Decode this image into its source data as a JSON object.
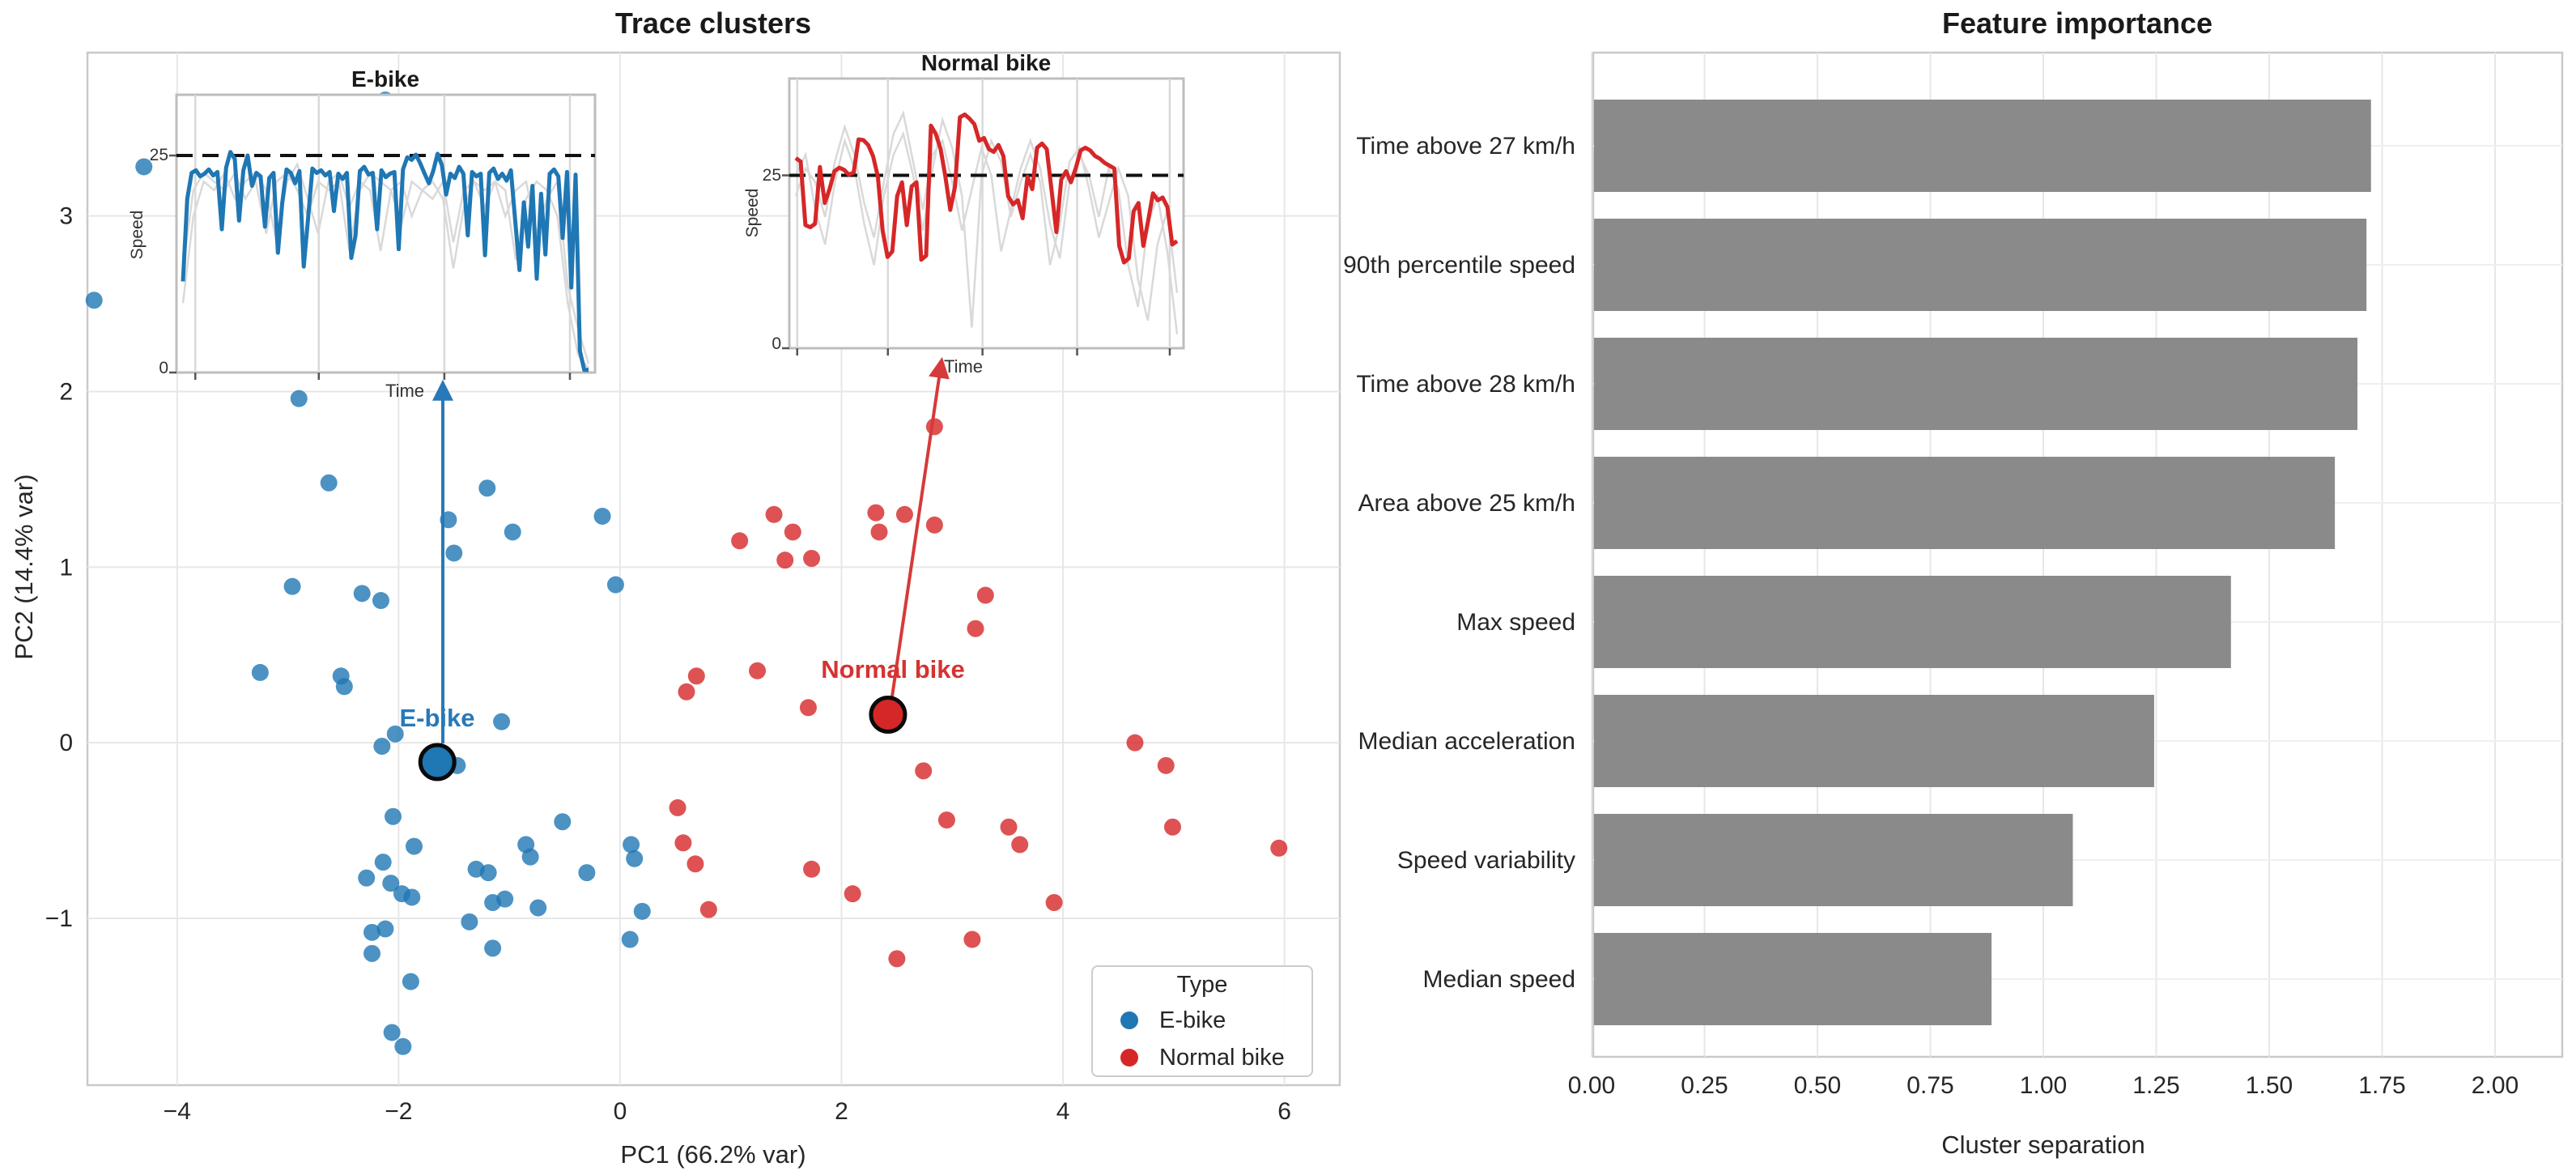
{
  "colors": {
    "ebike_blue": "#1f77b4",
    "normal_red": "#d62728",
    "ebike_label_blue": "#2779b8",
    "normal_label_red": "#d63232",
    "bar_gray": "#8a8a8a",
    "grid_gray": "#e7e7e7",
    "spine_gray": "#c9c9c9",
    "threshold_black": "#111111",
    "bg_trace_gray": "#d9d9d9"
  },
  "chart_data": [
    {
      "type": "scatter",
      "title": "Trace clusters",
      "xlabel": "PC1 (66.2% var)",
      "ylabel": "PC2 (14.4% var)",
      "xlim": [
        -4.81,
        6.5
      ],
      "ylim": [
        -1.95,
        3.93
      ],
      "xticks": [
        -4,
        -2,
        0,
        2,
        4,
        6
      ],
      "xtick_labels": [
        "−4",
        "−2",
        "0",
        "2",
        "4",
        "6"
      ],
      "yticks": [
        3,
        2,
        1,
        0,
        -1
      ],
      "ytick_labels": [
        "3",
        "2",
        "1",
        "0",
        "−1"
      ],
      "grid": true,
      "legend": {
        "title": "Type",
        "position": "lower right",
        "items": [
          {
            "label": "E-bike",
            "color": "#1f77b4"
          },
          {
            "label": "Normal bike",
            "color": "#d62728"
          }
        ]
      },
      "series": [
        {
          "name": "E-bike",
          "color": "#1f77b4",
          "points": [
            [
              -4.3,
              3.28
            ],
            [
              -4.75,
              2.52
            ],
            [
              -2.12,
              3.66
            ],
            [
              -2.9,
              1.96
            ],
            [
              -2.63,
              1.48
            ],
            [
              -1.2,
              1.45
            ],
            [
              -1.55,
              1.27
            ],
            [
              -0.97,
              1.2
            ],
            [
              -0.16,
              1.29
            ],
            [
              -1.5,
              1.08
            ],
            [
              -2.96,
              0.89
            ],
            [
              -2.33,
              0.85
            ],
            [
              -2.16,
              0.81
            ],
            [
              -0.04,
              0.9
            ],
            [
              -3.25,
              0.4
            ],
            [
              -2.52,
              0.38
            ],
            [
              -2.49,
              0.32
            ],
            [
              -1.07,
              0.12
            ],
            [
              -2.03,
              0.05
            ],
            [
              -2.15,
              -0.02
            ],
            [
              -1.47,
              -0.13
            ],
            [
              -2.05,
              -0.42
            ],
            [
              -1.86,
              -0.59
            ],
            [
              -2.14,
              -0.68
            ],
            [
              -2.29,
              -0.77
            ],
            [
              -2.07,
              -0.8
            ],
            [
              -1.97,
              -0.86
            ],
            [
              -1.88,
              -0.88
            ],
            [
              -1.3,
              -0.72
            ],
            [
              -1.19,
              -0.74
            ],
            [
              -1.15,
              -0.91
            ],
            [
              -1.04,
              -0.89
            ],
            [
              -0.85,
              -0.58
            ],
            [
              -0.81,
              -0.65
            ],
            [
              -0.74,
              -0.94
            ],
            [
              -0.52,
              -0.45
            ],
            [
              -0.3,
              -0.74
            ],
            [
              0.1,
              -0.58
            ],
            [
              0.13,
              -0.66
            ],
            [
              0.2,
              -0.96
            ],
            [
              0.09,
              -1.12
            ],
            [
              -1.36,
              -1.02
            ],
            [
              -1.15,
              -1.17
            ],
            [
              -2.24,
              -1.08
            ],
            [
              -2.12,
              -1.06
            ],
            [
              -2.24,
              -1.2
            ],
            [
              -1.89,
              -1.36
            ],
            [
              -2.06,
              -1.65
            ],
            [
              -1.96,
              -1.73
            ]
          ]
        },
        {
          "name": "Normal bike",
          "color": "#d62728",
          "points": [
            [
              2.84,
              1.8
            ],
            [
              2.31,
              1.31
            ],
            [
              2.57,
              1.3
            ],
            [
              2.84,
              1.24
            ],
            [
              2.34,
              1.2
            ],
            [
              1.39,
              1.3
            ],
            [
              1.56,
              1.2
            ],
            [
              1.08,
              1.15
            ],
            [
              1.49,
              1.04
            ],
            [
              1.73,
              1.05
            ],
            [
              3.3,
              0.84
            ],
            [
              3.21,
              0.65
            ],
            [
              1.24,
              0.41
            ],
            [
              1.7,
              0.2
            ],
            [
              0.69,
              0.38
            ],
            [
              0.6,
              0.29
            ],
            [
              4.65,
              0.0
            ],
            [
              2.74,
              -0.16
            ],
            [
              4.93,
              -0.13
            ],
            [
              2.95,
              -0.44
            ],
            [
              3.51,
              -0.48
            ],
            [
              3.61,
              -0.58
            ],
            [
              4.99,
              -0.48
            ],
            [
              5.95,
              -0.6
            ],
            [
              1.73,
              -0.72
            ],
            [
              2.1,
              -0.86
            ],
            [
              0.8,
              -0.95
            ],
            [
              3.92,
              -0.91
            ],
            [
              3.18,
              -1.12
            ],
            [
              2.5,
              -1.23
            ],
            [
              0.52,
              -0.37
            ],
            [
              0.57,
              -0.57
            ],
            [
              0.68,
              -0.69
            ]
          ]
        }
      ],
      "centroids": [
        {
          "label": "E-bike",
          "x": -1.65,
          "y": -0.11,
          "color": "#1f77b4",
          "label_color": "#2779b8"
        },
        {
          "label": "Normal bike",
          "x": 2.42,
          "y": 0.16,
          "color": "#d62728",
          "label_color": "#d63232"
        }
      ],
      "insets": [
        {
          "title": "E-bike",
          "ylabel": "Speed",
          "xlabel": "Time",
          "ytick_labels": [
            "0",
            "25"
          ],
          "threshold": 25,
          "ylim": [
            0,
            32
          ],
          "color": "#1f77b4",
          "trace": [
            10.5,
            20,
            23,
            23.3,
            22.6,
            22.9,
            23.4,
            22.7,
            23.1,
            16.5,
            23.6,
            25.4,
            24.6,
            17.5,
            23.3,
            25.0,
            21.5,
            23.0,
            22.6,
            16.8,
            22.4,
            23.0,
            13.8,
            19.5,
            23.4,
            23.0,
            21.8,
            23.2,
            12.2,
            17.8,
            23.5,
            23.0,
            23.3,
            22.7,
            23.1,
            18.6,
            22.9,
            22.3,
            23.0,
            13.2,
            15.8,
            23.2,
            23.7,
            22.8,
            23.0,
            16.5,
            23.3,
            22.5,
            22.9,
            23.1,
            14.2,
            23.4,
            24.8,
            24.5,
            25.1,
            24.1,
            22.9,
            21.8,
            23.2,
            25.2,
            23.9,
            20.5,
            22.9,
            22.4,
            23.7,
            22.9,
            15.8,
            23.1,
            22.6,
            22.9,
            13.5,
            23.0,
            23.5,
            22.3,
            22.9,
            22.1,
            23.3,
            17.5,
            11.8,
            19.6,
            14.5,
            21.5,
            10.8,
            20.6,
            13.6,
            22.9,
            23.4,
            22.6,
            15.5,
            23.1,
            9.8,
            22.8,
            2.5,
            0.3,
            0.3
          ],
          "bg_traces": [
            [
              8,
              18,
              22,
              21,
              23,
              20,
              22,
              23,
              21,
              15,
              22,
              24,
              20,
              16,
              22,
              23,
              19,
              22,
              21,
              14,
              21,
              22,
              18,
              21,
              22,
              20,
              12,
              19,
              22,
              21,
              22,
              18,
              21,
              22,
              16,
              20,
              22,
              10,
              5,
              1
            ],
            [
              12,
              21,
              23,
              22,
              21,
              23,
              20,
              22,
              16,
              22,
              23,
              21,
              18,
              22,
              21,
              22,
              14,
              21,
              23,
              22,
              21,
              17,
              22,
              21,
              20,
              22,
              15,
              21,
              22,
              19,
              22,
              21,
              13,
              20,
              22,
              21,
              18,
              8,
              2,
              0.5
            ]
          ]
        },
        {
          "title": "Normal bike",
          "ylabel": "Speed",
          "xlabel": "Time",
          "ytick_labels": [
            "0",
            "25"
          ],
          "threshold": 25,
          "ylim": [
            0,
            39
          ],
          "color": "#d62728",
          "trace": [
            27.5,
            27,
            17.8,
            17.5,
            18,
            26.2,
            21,
            23,
            25.6,
            26.1,
            25.8,
            25.1,
            25.4,
            30.2,
            30.1,
            29.4,
            27.8,
            24.8,
            17,
            13.2,
            14,
            22,
            24,
            17.8,
            23.4,
            24,
            12.8,
            13.4,
            32.2,
            31,
            28.8,
            24.8,
            20,
            23.4,
            33.4,
            33.8,
            33.2,
            32.4,
            30,
            30.4,
            28.8,
            28.4,
            29.4,
            27.8,
            22,
            20.8,
            21.4,
            18.8,
            24.8,
            23,
            29,
            29.6,
            28.8,
            22.8,
            16.8,
            24.4,
            25.6,
            24,
            26,
            28.6,
            29,
            28.6,
            27.8,
            27.4,
            26.8,
            26.4,
            26,
            14.8,
            12.4,
            13,
            19.8,
            21,
            14.8,
            18.4,
            22.4,
            21.4,
            21.8,
            20.4,
            15,
            15.5
          ],
          "bg_traces": [
            [
              25,
              28,
              20,
              15,
              24,
              30,
              26,
              18,
              12,
              22,
              28,
              31,
              25,
              17,
              26,
              33,
              29,
              22,
              3,
              25,
              30,
              27,
              19,
              24,
              28,
              24,
              12,
              18,
              27,
              29,
              23,
              16,
              21,
              26,
              22,
              10,
              4,
              15,
              20,
              8
            ],
            [
              22,
              26,
              24,
              19,
              27,
              32,
              28,
              21,
              16,
              24,
              31,
              34,
              27,
              20,
              28,
              30,
              24,
              17,
              23,
              29,
              25,
              14,
              20,
              26,
              30,
              26,
              18,
              13,
              24,
              28,
              25,
              19,
              26,
              23,
              12,
              6,
              18,
              22,
              14,
              2
            ]
          ]
        }
      ]
    },
    {
      "type": "bar",
      "orientation": "horizontal",
      "title": "Feature importance",
      "xlabel": "Cluster separation",
      "categories": [
        "Time above 27 km/h",
        "90th percentile speed",
        "Time above 28 km/h",
        "Area above 25 km/h",
        "Max speed",
        "Median acceleration",
        "Speed variability",
        "Median speed"
      ],
      "values": [
        1.72,
        1.71,
        1.69,
        1.64,
        1.41,
        1.24,
        1.06,
        0.88
      ],
      "xlim": [
        0,
        2.15
      ],
      "xticks": [
        0,
        0.25,
        0.5,
        0.75,
        1.0,
        1.25,
        1.5,
        1.75,
        2.0
      ],
      "xtick_labels": [
        "0.00",
        "0.25",
        "0.50",
        "0.75",
        "1.00",
        "1.25",
        "1.50",
        "1.75",
        "2.00"
      ],
      "bar_color": "#8a8a8a",
      "grid": true
    }
  ]
}
